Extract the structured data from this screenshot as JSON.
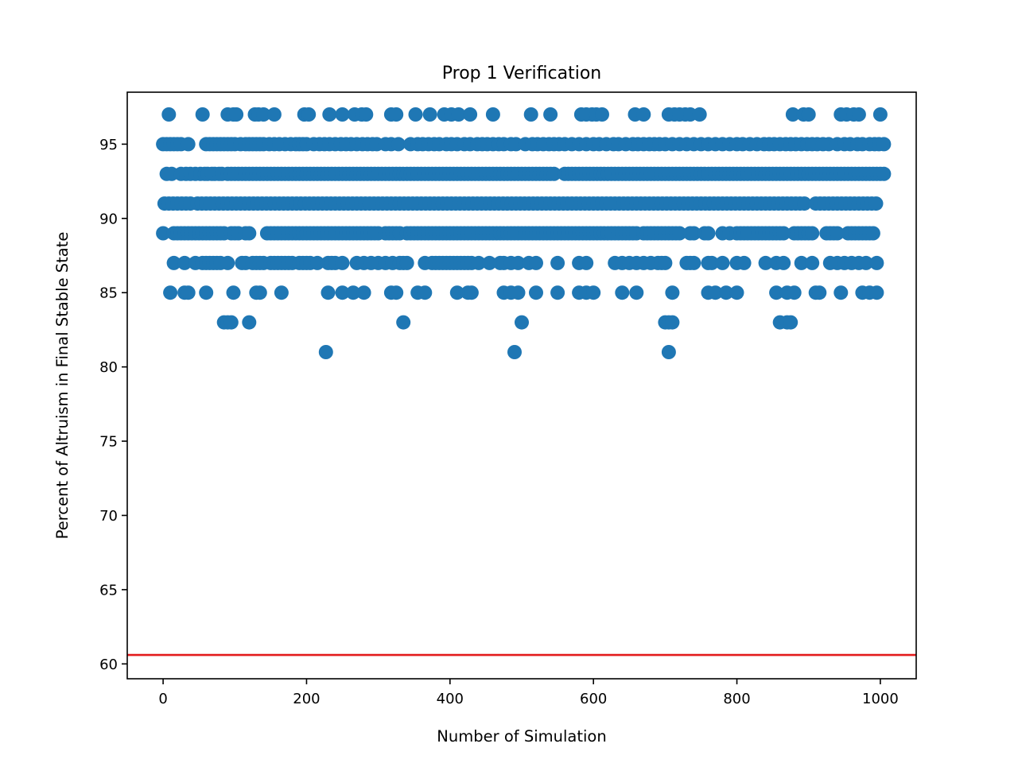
{
  "chart_data": {
    "type": "scatter",
    "title": "Prop 1 Verification",
    "xlabel": "Number of Simulation",
    "ylabel": "Percent of Altruism in Final Stable State",
    "xlim": [
      -50,
      1050
    ],
    "ylim": [
      59,
      98.5
    ],
    "x_ticks": [
      0,
      200,
      400,
      600,
      800,
      1000
    ],
    "y_ticks": [
      60,
      65,
      70,
      75,
      80,
      85,
      90,
      95
    ],
    "reference_line": {
      "orientation": "horizontal",
      "y": 60.6,
      "color": "#e31a1c"
    },
    "marker_color": "#1f77b4",
    "grid": false,
    "legend": "none",
    "levels": [
      {
        "y": 97,
        "x": [
          8,
          55,
          90,
          98,
          102,
          128,
          133,
          140,
          155,
          197,
          203,
          232,
          250,
          267,
          277,
          283,
          318,
          325,
          352,
          372,
          392,
          402,
          412,
          428,
          460,
          513,
          540,
          583,
          590,
          598,
          604,
          612,
          658,
          670,
          705,
          713,
          720,
          728,
          735,
          748,
          878,
          893,
          900,
          945,
          953,
          963,
          970,
          1000
        ]
      },
      {
        "y": 95,
        "x": [
          0,
          5,
          10,
          15,
          20,
          25,
          35,
          60,
          65,
          70,
          75,
          80,
          85,
          90,
          95,
          100,
          108,
          115,
          120,
          125,
          130,
          135,
          140,
          148,
          155,
          162,
          170,
          178,
          185,
          190,
          195,
          200,
          210,
          218,
          225,
          232,
          240,
          248,
          255,
          262,
          270,
          278,
          285,
          292,
          298,
          310,
          318,
          328,
          345,
          355,
          362,
          370,
          378,
          385,
          395,
          402,
          410,
          420,
          428,
          438,
          445,
          452,
          460,
          468,
          475,
          485,
          492,
          505,
          515,
          522,
          530,
          538,
          545,
          552,
          560,
          570,
          580,
          590,
          600,
          608,
          618,
          628,
          635,
          645,
          655,
          662,
          670,
          678,
          685,
          692,
          700,
          710,
          720,
          730,
          740,
          750,
          760,
          770,
          780,
          790,
          800,
          808,
          818,
          828,
          838,
          845,
          852,
          860,
          868,
          875,
          882,
          890,
          898,
          905,
          912,
          920,
          928,
          940,
          950,
          958,
          968,
          975,
          985,
          992,
          998,
          1005
        ]
      },
      {
        "y": 93,
        "x": [
          5,
          12,
          25,
          32,
          38,
          45,
          52,
          58,
          62,
          68,
          72,
          78,
          82,
          90,
          95,
          100,
          105,
          110,
          115,
          120,
          125,
          130,
          135,
          140,
          145,
          150,
          155,
          160,
          165,
          170,
          175,
          180,
          185,
          190,
          195,
          200,
          205,
          210,
          215,
          220,
          225,
          230,
          235,
          240,
          245,
          250,
          255,
          260,
          265,
          270,
          275,
          280,
          285,
          290,
          295,
          300,
          305,
          310,
          315,
          320,
          325,
          330,
          335,
          340,
          345,
          350,
          355,
          360,
          365,
          370,
          375,
          380,
          385,
          390,
          395,
          400,
          405,
          410,
          415,
          420,
          425,
          430,
          435,
          440,
          445,
          450,
          455,
          460,
          465,
          470,
          475,
          480,
          485,
          490,
          495,
          500,
          505,
          510,
          515,
          520,
          525,
          530,
          535,
          540,
          545,
          560,
          565,
          570,
          575,
          580,
          585,
          590,
          595,
          600,
          605,
          610,
          615,
          620,
          625,
          630,
          635,
          640,
          645,
          650,
          655,
          660,
          665,
          670,
          675,
          680,
          685,
          690,
          695,
          700,
          705,
          710,
          715,
          720,
          725,
          730,
          735,
          740,
          745,
          750,
          755,
          760,
          765,
          770,
          775,
          780,
          785,
          790,
          795,
          800,
          805,
          810,
          815,
          820,
          825,
          830,
          835,
          840,
          845,
          850,
          855,
          860,
          865,
          870,
          875,
          880,
          885,
          890,
          895,
          900,
          905,
          910,
          915,
          920,
          925,
          930,
          935,
          940,
          945,
          950,
          955,
          960,
          965,
          970,
          975,
          980,
          985,
          990,
          995,
          1000,
          1005
        ]
      },
      {
        "y": 91,
        "x": [
          2,
          8,
          14,
          20,
          26,
          32,
          38,
          48,
          54,
          60,
          66,
          72,
          78,
          84,
          90,
          96,
          102,
          108,
          114,
          120,
          126,
          132,
          138,
          144,
          150,
          156,
          162,
          168,
          174,
          180,
          186,
          192,
          198,
          204,
          210,
          216,
          222,
          228,
          234,
          240,
          246,
          252,
          258,
          264,
          270,
          276,
          282,
          288,
          294,
          300,
          306,
          312,
          318,
          324,
          330,
          336,
          342,
          348,
          354,
          360,
          366,
          372,
          378,
          384,
          390,
          396,
          402,
          408,
          414,
          420,
          426,
          432,
          438,
          444,
          450,
          456,
          462,
          468,
          474,
          480,
          486,
          492,
          498,
          504,
          510,
          516,
          522,
          528,
          534,
          540,
          546,
          552,
          558,
          564,
          570,
          576,
          582,
          588,
          594,
          600,
          606,
          612,
          618,
          624,
          630,
          636,
          642,
          648,
          654,
          660,
          666,
          672,
          678,
          684,
          690,
          696,
          702,
          708,
          714,
          720,
          726,
          732,
          738,
          744,
          750,
          756,
          762,
          768,
          774,
          780,
          786,
          792,
          798,
          804,
          810,
          816,
          822,
          828,
          834,
          840,
          846,
          852,
          858,
          864,
          870,
          876,
          882,
          888,
          894,
          910,
          916,
          922,
          928,
          934,
          940,
          946,
          952,
          958,
          964,
          970,
          976,
          982,
          988,
          994
        ]
      },
      {
        "y": 89,
        "x": [
          0,
          15,
          20,
          25,
          30,
          35,
          40,
          45,
          50,
          55,
          60,
          65,
          70,
          75,
          80,
          85,
          95,
          100,
          105,
          115,
          120,
          145,
          150,
          155,
          160,
          165,
          170,
          175,
          180,
          185,
          190,
          195,
          200,
          205,
          210,
          215,
          220,
          225,
          230,
          235,
          240,
          245,
          250,
          255,
          260,
          265,
          270,
          275,
          280,
          285,
          290,
          295,
          300,
          310,
          315,
          320,
          325,
          330,
          340,
          345,
          350,
          355,
          360,
          365,
          370,
          375,
          380,
          385,
          390,
          395,
          400,
          405,
          410,
          415,
          420,
          425,
          430,
          435,
          440,
          445,
          450,
          455,
          460,
          465,
          470,
          475,
          480,
          485,
          490,
          495,
          500,
          505,
          510,
          515,
          520,
          525,
          530,
          535,
          540,
          545,
          550,
          555,
          560,
          565,
          570,
          575,
          580,
          585,
          590,
          595,
          600,
          605,
          610,
          615,
          620,
          625,
          630,
          635,
          640,
          645,
          650,
          655,
          660,
          670,
          675,
          680,
          685,
          690,
          695,
          700,
          705,
          710,
          715,
          720,
          735,
          740,
          755,
          760,
          780,
          790,
          800,
          805,
          810,
          815,
          820,
          825,
          830,
          835,
          840,
          845,
          850,
          855,
          860,
          865,
          880,
          885,
          890,
          895,
          900,
          905,
          925,
          930,
          935,
          940,
          955,
          960,
          965,
          970,
          975,
          980,
          985,
          990
        ]
      },
      {
        "y": 87,
        "x": [
          15,
          30,
          45,
          55,
          60,
          65,
          70,
          75,
          80,
          90,
          110,
          115,
          125,
          130,
          135,
          140,
          150,
          155,
          160,
          165,
          170,
          175,
          180,
          190,
          195,
          200,
          205,
          215,
          230,
          235,
          240,
          250,
          270,
          280,
          290,
          300,
          310,
          320,
          330,
          335,
          340,
          365,
          375,
          380,
          385,
          390,
          395,
          400,
          405,
          410,
          415,
          420,
          425,
          430,
          440,
          455,
          470,
          475,
          485,
          495,
          510,
          520,
          550,
          580,
          590,
          630,
          640,
          650,
          660,
          670,
          680,
          690,
          695,
          700,
          730,
          735,
          740,
          760,
          765,
          780,
          800,
          810,
          840,
          855,
          865,
          890,
          905,
          930,
          940,
          950,
          960,
          970,
          980,
          995
        ]
      },
      {
        "y": 85,
        "x": [
          10,
          30,
          35,
          60,
          98,
          130,
          135,
          165,
          230,
          250,
          265,
          280,
          318,
          325,
          355,
          365,
          410,
          425,
          430,
          475,
          485,
          495,
          520,
          550,
          580,
          590,
          600,
          640,
          660,
          710,
          760,
          770,
          785,
          800,
          855,
          870,
          880,
          910,
          915,
          945,
          975,
          985,
          995
        ]
      },
      {
        "y": 83,
        "x": [
          85,
          90,
          95,
          120,
          335,
          500,
          700,
          705,
          710,
          860,
          870,
          875
        ]
      },
      {
        "y": 81,
        "x": [
          227,
          490,
          705
        ]
      }
    ]
  }
}
